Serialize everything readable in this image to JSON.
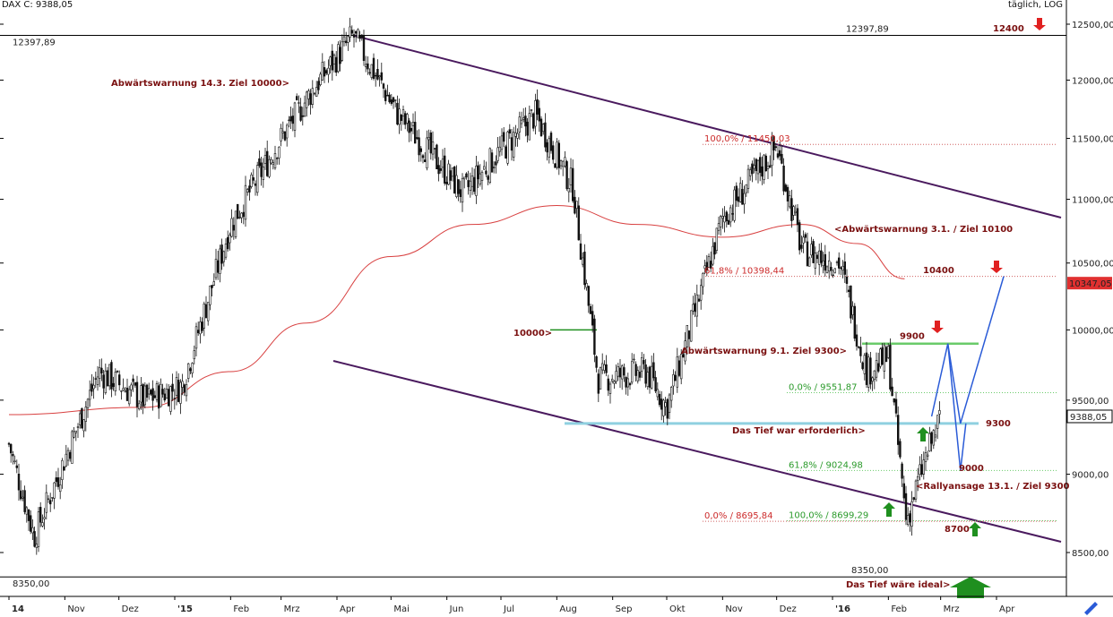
{
  "header": {
    "symbol_label": "DAX C: 9388,05",
    "period_label": "täglich, LOG"
  },
  "colors": {
    "candle": "#111111",
    "ma": "#d84040",
    "channel": "#4a1a5e",
    "fib_red": "#d06060",
    "fib_green": "#6acb6a",
    "support": "#8fd0e0",
    "projection": "#2a5bd7",
    "arrow_red": "#e02020",
    "arrow_green": "#1f8f1f",
    "price_badge": "#e03030",
    "annotation": "#7a1010"
  },
  "chart_data": {
    "type": "line",
    "scale": "log",
    "ylim": [
      8350,
      12500
    ],
    "y_ticks": [
      "12500,00",
      "12000,00",
      "11500,00",
      "11000,00",
      "10500,00",
      "10000,00",
      "9500,00",
      "9000,00",
      "8500,00"
    ],
    "x_ticks": [
      "14",
      "Nov",
      "Dez",
      "'15",
      "Feb",
      "Mrz",
      "Apr",
      "Mai",
      "Jun",
      "Jul",
      "Aug",
      "Sep",
      "Okt",
      "Nov",
      "Dez",
      "'16",
      "Feb",
      "Mrz",
      "Apr"
    ],
    "price_path_dates": [
      "2014-10-01",
      "2014-10-15",
      "2014-11-20",
      "2014-12-15",
      "2015-01-05",
      "2015-02-01",
      "2015-03-01",
      "2015-03-20",
      "2015-04-10",
      "2015-05-05",
      "2015-06-10",
      "2015-07-01",
      "2015-07-20",
      "2015-08-10",
      "2015-08-24",
      "2015-09-20",
      "2015-10-01",
      "2015-11-01",
      "2015-12-01",
      "2015-12-15",
      "2016-01-05",
      "2016-01-20",
      "2016-02-01",
      "2016-02-11",
      "2016-02-20",
      "2016-03-01"
    ],
    "price_path": [
      9200,
      8600,
      9700,
      9500,
      9600,
      10800,
      11500,
      11950,
      12397.89,
      11700,
      11050,
      11400,
      11700,
      11100,
      9650,
      9700,
      9450,
      10850,
      11430,
      10600,
      10500,
      9700,
      9800,
      8699.29,
      9050,
      9388.05
    ],
    "ma200_dates": [
      "2014-10-01",
      "2014-12-15",
      "2015-02-01",
      "2015-03-15",
      "2015-05-01",
      "2015-06-15",
      "2015-08-01",
      "2015-09-15",
      "2015-11-01",
      "2015-12-15",
      "2016-01-15",
      "2016-02-10"
    ],
    "ma200": [
      9400,
      9450,
      9700,
      10050,
      10550,
      10800,
      10950,
      10800,
      10700,
      10800,
      10650,
      10380
    ],
    "reference_lines": [
      {
        "price": 12397.89,
        "label": "12397,89"
      },
      {
        "price": 8350.0,
        "label": "8350,00"
      }
    ],
    "fib_levels": [
      {
        "label": "100,0% / 11450,03",
        "price": 11450.03,
        "color": "red"
      },
      {
        "label": "61,8% / 10398,44",
        "price": 10398.44,
        "color": "red"
      },
      {
        "label": "0,0% / 8695,84",
        "price": 8695.84,
        "color": "red"
      },
      {
        "label": "0,0% / 9551,87",
        "price": 9551.87,
        "color": "green"
      },
      {
        "label": "61,8% / 9024,98",
        "price": 9024.98,
        "color": "green"
      },
      {
        "label": "100,0% / 8699,29",
        "price": 8699.29,
        "color": "green"
      }
    ],
    "support_line": {
      "price": 9340,
      "label": "9300"
    },
    "green_zone": {
      "price": 9900,
      "label": "9900"
    },
    "projection_dates": [
      "2016-02-25",
      "2016-03-05",
      "2016-03-12",
      "2016-04-05"
    ],
    "projection": [
      9388.05,
      9900,
      9340,
      10398.44
    ],
    "projection_alt_dates": [
      "2016-03-05",
      "2016-03-12",
      "2016-03-15"
    ],
    "projection_alt": [
      9900,
      9024.98,
      9340
    ],
    "last_price": {
      "value": 9388.05,
      "label": "9388,05"
    },
    "badge_price": {
      "value": 10347.05,
      "label": "10347,05"
    },
    "level_labels": {
      "l12400": "12400",
      "l10400": "10400",
      "l9000": "9000",
      "l8700": "8700"
    },
    "annotations": [
      {
        "text": "Abwärtswarnung 14.3. Ziel 10000>",
        "date": "2015-03-14"
      },
      {
        "text": "<Abwärtswarnung 3.1. / Ziel 10100",
        "date": "2016-01-03"
      },
      {
        "text": "10000>",
        "date": "2015-08-24"
      },
      {
        "text": "Abwärtswarnung 9.1. Ziel 9300>",
        "date": "2016-01-09"
      },
      {
        "text": "Das Tief war erforderlich>",
        "date": "2016-02-11"
      },
      {
        "text": "<Rallyansage 13.1. / Ziel 9300",
        "date": "2016-02-13"
      },
      {
        "text": "Das Tief wäre ideal>",
        "date": "2016-03-20"
      }
    ]
  }
}
